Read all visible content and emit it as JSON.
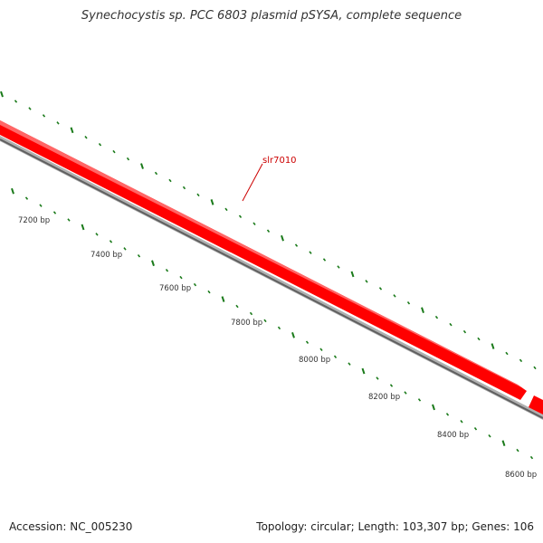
{
  "title": "Synechocystis sp. PCC 6803 plasmid pSYSA, complete sequence",
  "footer": {
    "accession": "Accession: NC_005230",
    "summary": "Topology: circular; Length: 103,307 bp; Genes: 106"
  },
  "gene_label": "slr7010",
  "ruler_labels": [
    "7200 bp",
    "7400 bp",
    "7600 bp",
    "7800 bp",
    "8000 bp",
    "8200 bp",
    "8400 bp",
    "8600 bp"
  ],
  "colors": {
    "gene": "#ff0000",
    "gene_label": "#cc0000",
    "backbone": "#808080",
    "ticks": "#1a7a1a",
    "ruler_text": "#333333"
  }
}
